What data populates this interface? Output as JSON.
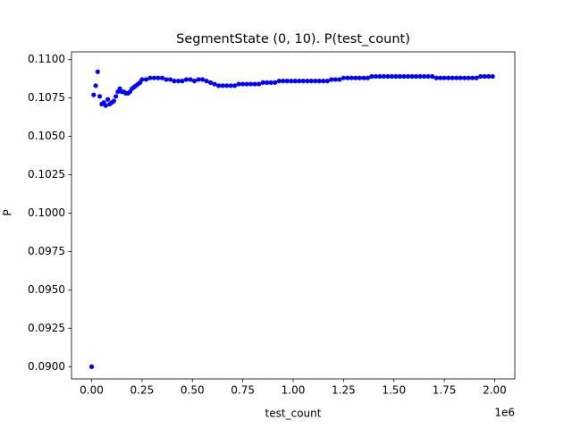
{
  "chart_data": {
    "type": "scatter",
    "title": "SegmentState (0, 10). P(test_count)",
    "x_label": "test_count",
    "y_label": "P",
    "x_offset_label": "1e6",
    "color": "#0000ff",
    "x": [
      0,
      0.01,
      0.02,
      0.03,
      0.04,
      0.05,
      0.06,
      0.07,
      0.08,
      0.09,
      0.1,
      0.11,
      0.12,
      0.13,
      0.14,
      0.15,
      0.16,
      0.17,
      0.18,
      0.19,
      0.2,
      0.21,
      0.22,
      0.23,
      0.24,
      0.25,
      0.27,
      0.29,
      0.31,
      0.33,
      0.35,
      0.37,
      0.39,
      0.41,
      0.43,
      0.45,
      0.47,
      0.49,
      0.51,
      0.53,
      0.55,
      0.57,
      0.59,
      0.61,
      0.63,
      0.65,
      0.67,
      0.69,
      0.71,
      0.73,
      0.75,
      0.77,
      0.79,
      0.81,
      0.83,
      0.85,
      0.87,
      0.89,
      0.91,
      0.93,
      0.95,
      0.97,
      0.99,
      1.01,
      1.03,
      1.05,
      1.07,
      1.09,
      1.11,
      1.13,
      1.15,
      1.17,
      1.19,
      1.21,
      1.23,
      1.25,
      1.27,
      1.29,
      1.31,
      1.33,
      1.35,
      1.37,
      1.39,
      1.41,
      1.43,
      1.45,
      1.47,
      1.49,
      1.51,
      1.53,
      1.55,
      1.57,
      1.59,
      1.61,
      1.63,
      1.65,
      1.67,
      1.69,
      1.71,
      1.73,
      1.75,
      1.77,
      1.79,
      1.81,
      1.83,
      1.85,
      1.87,
      1.89,
      1.91,
      1.93,
      1.95,
      1.97,
      1.99
    ],
    "values": [
      0.09,
      0.1077,
      0.1083,
      0.1092,
      0.1076,
      0.1071,
      0.1072,
      0.107,
      0.1074,
      0.1071,
      0.1072,
      0.1073,
      0.1076,
      0.1079,
      0.1081,
      0.1079,
      0.1079,
      0.1078,
      0.1078,
      0.1079,
      0.1081,
      0.1082,
      0.1083,
      0.1084,
      0.1085,
      0.1087,
      0.1087,
      0.1088,
      0.1088,
      0.1088,
      0.1088,
      0.1087,
      0.1087,
      0.1086,
      0.1086,
      0.1086,
      0.1087,
      0.1087,
      0.1086,
      0.1087,
      0.1087,
      0.1086,
      0.1085,
      0.1084,
      0.1083,
      0.1083,
      0.1083,
      0.1083,
      0.1083,
      0.1084,
      0.1084,
      0.1084,
      0.1084,
      0.1084,
      0.1084,
      0.1085,
      0.1085,
      0.1085,
      0.1085,
      0.1086,
      0.1086,
      0.1086,
      0.1086,
      0.1086,
      0.1086,
      0.1086,
      0.1086,
      0.1086,
      0.1086,
      0.1086,
      0.1086,
      0.1086,
      0.1087,
      0.1087,
      0.1087,
      0.1088,
      0.1088,
      0.1088,
      0.1088,
      0.1088,
      0.1088,
      0.1088,
      0.1089,
      0.1089,
      0.1089,
      0.1089,
      0.1089,
      0.1089,
      0.1089,
      0.1089,
      0.1089,
      0.1089,
      0.1089,
      0.1089,
      0.1089,
      0.1089,
      0.1089,
      0.1089,
      0.1088,
      0.1088,
      0.1088,
      0.1088,
      0.1088,
      0.1088,
      0.1088,
      0.1088,
      0.1088,
      0.1088,
      0.1088,
      0.1089,
      0.1089,
      0.1089,
      0.1089
    ],
    "xlim": [
      -0.1,
      2.1
    ],
    "ylim": [
      0.0892,
      0.1105
    ],
    "xticks": [
      {
        "value": 0,
        "label": "0.00"
      },
      {
        "value": 0.25,
        "label": "0.25"
      },
      {
        "value": 0.5,
        "label": "0.50"
      },
      {
        "value": 0.75,
        "label": "0.75"
      },
      {
        "value": 1,
        "label": "1.00"
      },
      {
        "value": 1.25,
        "label": "1.25"
      },
      {
        "value": 1.5,
        "label": "1.50"
      },
      {
        "value": 1.75,
        "label": "1.75"
      },
      {
        "value": 2,
        "label": "2.00"
      }
    ],
    "yticks": [
      {
        "value": 0.09,
        "label": "0.0900"
      },
      {
        "value": 0.0925,
        "label": "0.0925"
      },
      {
        "value": 0.095,
        "label": "0.0950"
      },
      {
        "value": 0.0975,
        "label": "0.0975"
      },
      {
        "value": 0.1,
        "label": "0.1000"
      },
      {
        "value": 0.1025,
        "label": "0.1025"
      },
      {
        "value": 0.105,
        "label": "0.1050"
      },
      {
        "value": 0.1075,
        "label": "0.1075"
      },
      {
        "value": 0.11,
        "label": "0.1100"
      }
    ]
  }
}
